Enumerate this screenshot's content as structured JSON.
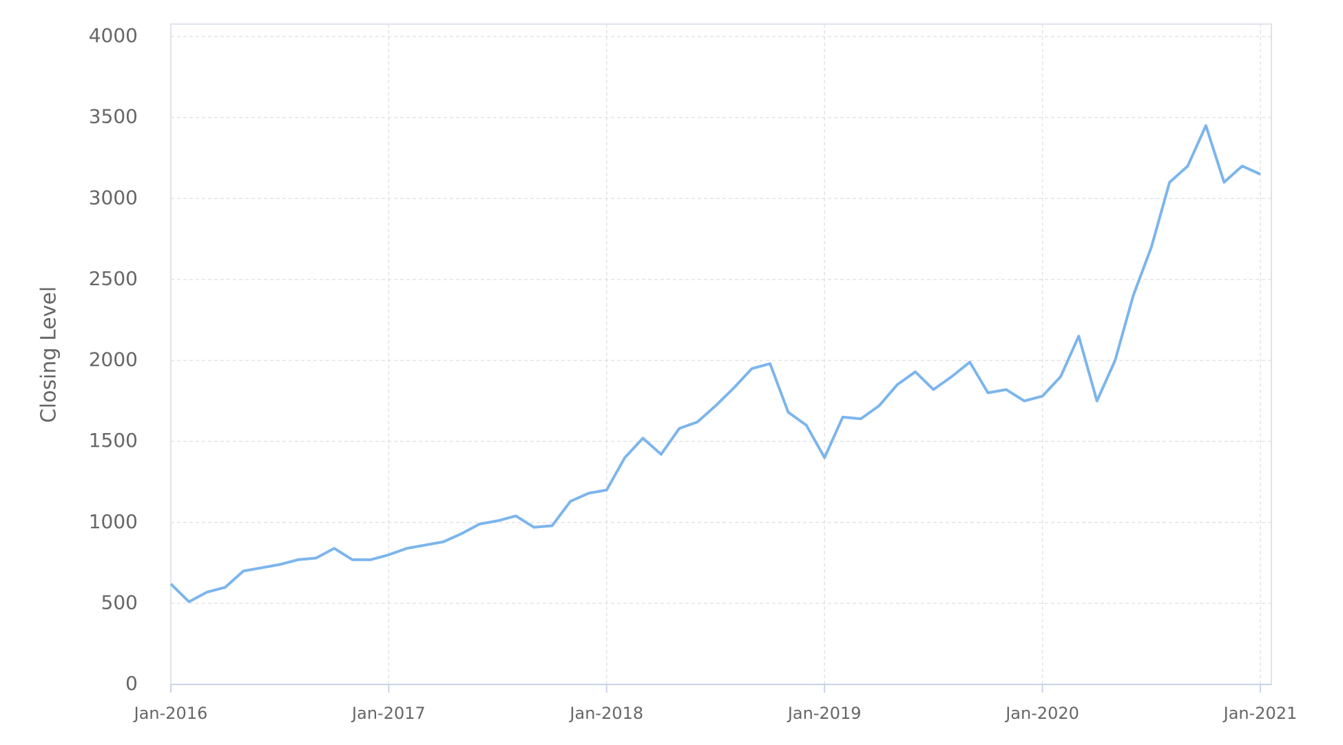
{
  "chart_data": {
    "type": "line",
    "y_label": "Closing Level",
    "x": [
      "2016-01",
      "2016-02",
      "2016-03",
      "2016-04",
      "2016-05",
      "2016-06",
      "2016-07",
      "2016-08",
      "2016-09",
      "2016-10",
      "2016-11",
      "2016-12",
      "2017-01",
      "2017-02",
      "2017-03",
      "2017-04",
      "2017-05",
      "2017-06",
      "2017-07",
      "2017-08",
      "2017-09",
      "2017-10",
      "2017-11",
      "2017-12",
      "2018-01",
      "2018-02",
      "2018-03",
      "2018-04",
      "2018-05",
      "2018-06",
      "2018-07",
      "2018-08",
      "2018-09",
      "2018-10",
      "2018-11",
      "2018-12",
      "2019-01",
      "2019-02",
      "2019-03",
      "2019-04",
      "2019-05",
      "2019-06",
      "2019-07",
      "2019-08",
      "2019-09",
      "2019-10",
      "2019-11",
      "2019-12",
      "2020-01",
      "2020-02",
      "2020-03",
      "2020-04",
      "2020-05",
      "2020-06",
      "2020-07",
      "2020-08",
      "2020-09",
      "2020-10",
      "2020-11",
      "2020-12",
      "2021-01"
    ],
    "values": [
      620,
      510,
      570,
      600,
      700,
      720,
      740,
      770,
      780,
      840,
      770,
      770,
      800,
      840,
      860,
      880,
      930,
      990,
      1010,
      1040,
      970,
      980,
      1130,
      1180,
      1200,
      1400,
      1520,
      1420,
      1580,
      1620,
      1720,
      1830,
      1950,
      1980,
      1680,
      1600,
      1400,
      1650,
      1640,
      1720,
      1850,
      1930,
      1820,
      1900,
      1990,
      1800,
      1820,
      1750,
      1780,
      1900,
      2150,
      1750,
      2000,
      2400,
      2700,
      3100,
      3200,
      3450,
      3100,
      3200,
      3150
    ],
    "color": "#7cb5ec",
    "xlim": [
      "2016-01",
      "2021-01"
    ],
    "xticks": [
      {
        "value": "2016-01",
        "label": "Jan-2016"
      },
      {
        "value": "2017-01",
        "label": "Jan-2017"
      },
      {
        "value": "2018-01",
        "label": "Jan-2018"
      },
      {
        "value": "2019-01",
        "label": "Jan-2019"
      },
      {
        "value": "2020-01",
        "label": "Jan-2020"
      },
      {
        "value": "2021-01",
        "label": "Jan-2021"
      }
    ],
    "ylim": [
      0,
      4000
    ],
    "yticks": [
      0,
      500,
      1000,
      1500,
      2000,
      2500,
      3000,
      3500,
      4000
    ],
    "grid": true
  }
}
